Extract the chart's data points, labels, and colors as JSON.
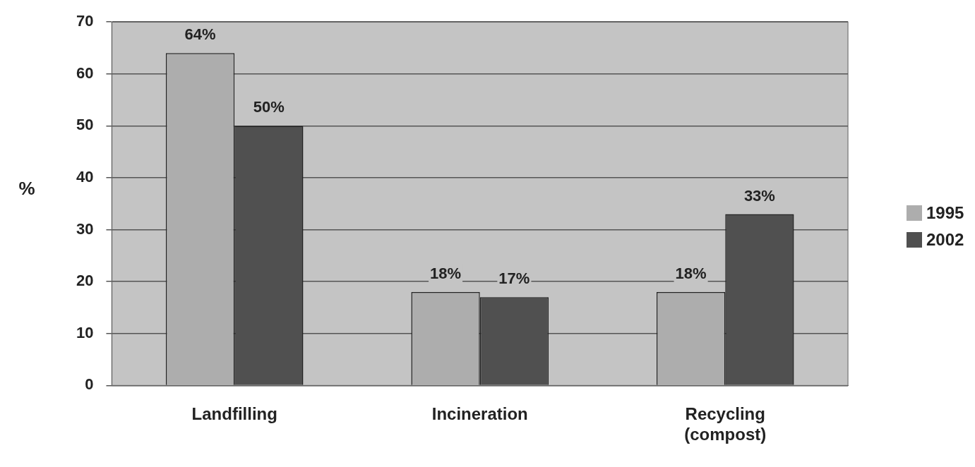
{
  "chart_data": {
    "type": "bar",
    "ylabel": "%",
    "categories": [
      "Landfilling",
      "Incineration",
      "Recycling (compost)"
    ],
    "series": [
      {
        "name": "1995",
        "color": "#adadad",
        "values": [
          64,
          18,
          18
        ],
        "value_labels": [
          "64%",
          "18%",
          "18%"
        ]
      },
      {
        "name": "2002",
        "color": "#505050",
        "values": [
          50,
          17,
          33
        ],
        "value_labels": [
          "50%",
          "17%",
          "33%"
        ]
      }
    ],
    "ylim": [
      0,
      70
    ],
    "yticks": [
      0,
      10,
      20,
      30,
      40,
      50,
      60,
      70
    ],
    "grid": "y",
    "legend": "right"
  }
}
